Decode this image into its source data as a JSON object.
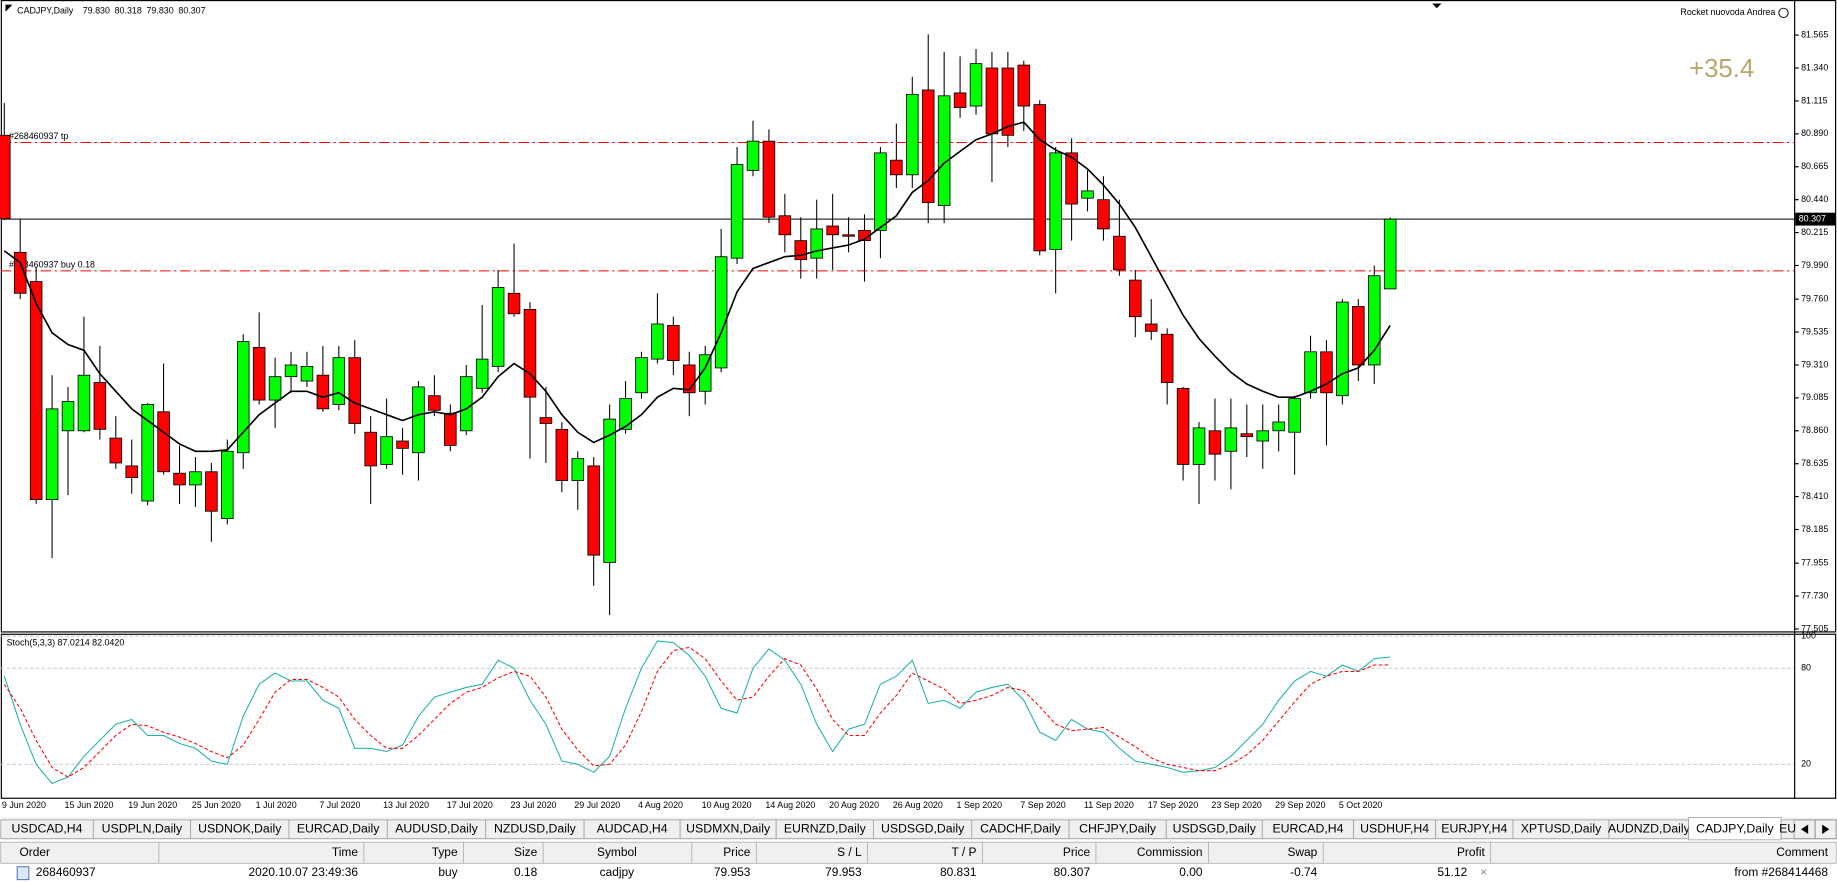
{
  "header": {
    "symbol": "CADJPY,Daily",
    "prices": [
      "79.830",
      "80.318",
      "79.830",
      "80.307"
    ],
    "account": "Rocket nuovoda Andrea",
    "profit_label": "+35.4"
  },
  "chart_data": [
    {
      "type": "candlestick",
      "categories": [
        "9 Jun 2020",
        null,
        null,
        null,
        "15 Jun 2020",
        null,
        null,
        null,
        "19 Jun 2020",
        null,
        null,
        null,
        "25 Jun 2020",
        null,
        null,
        null,
        "1 Jul 2020",
        null,
        null,
        null,
        "7 Jul 2020",
        null,
        null,
        null,
        "13 Jul 2020",
        null,
        null,
        null,
        "17 Jul 2020",
        null,
        null,
        null,
        "23 Jul 2020",
        null,
        null,
        null,
        "29 Jul 2020",
        null,
        null,
        null,
        "4 Aug 2020",
        null,
        null,
        null,
        "10 Aug 2020",
        null,
        null,
        null,
        "14 Aug 2020",
        null,
        null,
        null,
        "20 Aug 2020",
        null,
        null,
        null,
        "26 Aug 2020",
        null,
        null,
        null,
        "1 Sep 2020",
        null,
        null,
        null,
        "7 Sep 2020",
        null,
        null,
        null,
        "11 Sep 2020",
        null,
        null,
        null,
        "17 Sep 2020",
        null,
        null,
        null,
        "23 Sep 2020",
        null,
        null,
        null,
        "29 Sep 2020",
        null,
        null,
        null,
        "5 Oct 2020",
        null,
        null,
        null
      ],
      "open": [
        80.88,
        80.08,
        79.88,
        78.39,
        78.86,
        78.86,
        79.19,
        78.81,
        78.62,
        78.38,
        78.99,
        78.57,
        78.49,
        78.58,
        78.26,
        78.71,
        79.43,
        79.07,
        79.23,
        79.2,
        79.24,
        79.04,
        79.36,
        78.85,
        78.63,
        78.79,
        78.71,
        79.1,
        78.98,
        78.86,
        79.15,
        79.3,
        79.8,
        79.69,
        78.95,
        78.87,
        78.52,
        78.62,
        77.96,
        78.87,
        79.12,
        79.35,
        79.58,
        79.31,
        79.13,
        79.29,
        80.04,
        80.64,
        80.84,
        80.33,
        80.16,
        80.04,
        80.26,
        80.2,
        80.23,
        80.23,
        80.71,
        80.61,
        81.19,
        80.4,
        81.17,
        81.08,
        81.34,
        81.34,
        81.36,
        81.09,
        80.1,
        80.76,
        80.45,
        80.44,
        80.19,
        79.89,
        79.59,
        79.52,
        79.15,
        78.63,
        78.86,
        78.72,
        78.84,
        78.79,
        78.86,
        78.85,
        79.12,
        79.4,
        79.1,
        79.71,
        79.31,
        79.83
      ],
      "high": [
        81.1,
        80.31,
        79.98,
        79.24,
        79.16,
        79.64,
        79.44,
        78.96,
        78.8,
        79.05,
        79.32,
        78.76,
        78.68,
        78.64,
        78.8,
        79.52,
        79.67,
        79.36,
        79.4,
        79.4,
        79.44,
        79.44,
        79.48,
        78.96,
        79.08,
        78.88,
        79.2,
        79.24,
        79.04,
        79.31,
        79.72,
        79.96,
        80.14,
        79.74,
        79.16,
        78.92,
        78.72,
        78.68,
        79.04,
        79.2,
        79.4,
        79.8,
        79.64,
        79.4,
        79.44,
        80.24,
        80.8,
        80.98,
        80.92,
        80.48,
        80.32,
        80.44,
        80.48,
        80.32,
        80.34,
        80.8,
        80.96,
        81.28,
        81.57,
        81.45,
        81.42,
        81.47,
        81.45,
        81.45,
        81.39,
        81.12,
        80.8,
        80.86,
        80.64,
        80.6,
        80.44,
        79.96,
        79.76,
        79.56,
        79.16,
        78.92,
        79.08,
        79.08,
        79.04,
        79.04,
        79.04,
        79.1,
        79.51,
        79.48,
        79.76,
        79.76,
        79.99,
        80.318
      ],
      "low": [
        80.3,
        79.76,
        78.36,
        77.99,
        78.42,
        78.85,
        78.8,
        78.6,
        78.43,
        78.35,
        78.56,
        78.36,
        78.34,
        78.1,
        78.22,
        78.6,
        79.04,
        78.88,
        79.12,
        79.16,
        78.99,
        79.0,
        78.84,
        78.36,
        78.6,
        78.56,
        78.52,
        78.96,
        78.72,
        78.83,
        79.12,
        79.26,
        79.64,
        78.67,
        78.64,
        78.44,
        78.32,
        77.8,
        77.6,
        78.84,
        79.08,
        79.32,
        79.24,
        78.96,
        79.04,
        79.26,
        80.0,
        80.6,
        80.28,
        80.08,
        79.9,
        79.9,
        79.96,
        80.08,
        79.88,
        80.04,
        80.52,
        80.52,
        80.28,
        80.28,
        81.0,
        81.02,
        80.56,
        80.8,
        80.91,
        80.06,
        79.8,
        80.16,
        80.36,
        80.16,
        79.92,
        79.5,
        79.48,
        79.04,
        78.52,
        78.36,
        78.52,
        78.46,
        78.68,
        78.6,
        78.72,
        78.56,
        79.08,
        78.76,
        79.04,
        79.2,
        79.18,
        79.83
      ],
      "close": [
        80.31,
        79.8,
        78.39,
        79.01,
        79.06,
        79.24,
        78.87,
        78.64,
        78.54,
        79.04,
        78.58,
        78.49,
        78.58,
        78.31,
        78.72,
        79.47,
        79.07,
        79.23,
        79.31,
        79.3,
        79.01,
        79.36,
        78.91,
        78.62,
        78.82,
        78.74,
        79.16,
        79.0,
        78.76,
        79.23,
        79.35,
        79.84,
        79.66,
        79.09,
        78.91,
        78.52,
        78.67,
        78.01,
        78.94,
        79.08,
        79.36,
        79.59,
        79.34,
        79.12,
        79.38,
        80.05,
        80.68,
        80.84,
        80.32,
        80.2,
        80.03,
        80.24,
        80.2,
        80.19,
        80.16,
        80.76,
        80.61,
        81.16,
        80.42,
        81.15,
        81.07,
        81.37,
        80.89,
        80.88,
        81.08,
        80.09,
        80.76,
        80.41,
        80.5,
        80.24,
        79.96,
        79.64,
        79.54,
        79.19,
        78.63,
        78.88,
        78.7,
        78.88,
        78.82,
        78.86,
        78.92,
        79.08,
        79.4,
        79.12,
        79.74,
        79.31,
        79.92,
        80.307
      ],
      "up_color": "#00ff00",
      "down_color": "#ff0000",
      "ma": {
        "color": "#000000",
        "values": [
          80.09,
          80.01,
          79.73,
          79.53,
          79.45,
          79.41,
          79.25,
          79.13,
          79.01,
          78.93,
          78.85,
          78.77,
          78.72,
          78.72,
          78.73,
          78.85,
          78.97,
          79.05,
          79.13,
          79.13,
          79.09,
          79.12,
          79.05,
          79.01,
          78.97,
          78.93,
          78.97,
          78.99,
          78.97,
          79.01,
          79.09,
          79.23,
          79.32,
          79.25,
          79.13,
          78.97,
          78.85,
          78.78,
          78.83,
          78.89,
          78.97,
          79.09,
          79.15,
          79.14,
          79.29,
          79.53,
          79.81,
          79.97,
          80.01,
          80.05,
          80.06,
          80.09,
          80.11,
          80.13,
          80.17,
          80.25,
          80.33,
          80.49,
          80.57,
          80.69,
          80.77,
          80.85,
          80.89,
          80.94,
          80.97,
          80.85,
          80.78,
          80.73,
          80.65,
          80.54,
          80.41,
          80.25,
          80.05,
          79.85,
          79.65,
          79.49,
          79.37,
          79.26,
          79.18,
          79.13,
          79.09,
          79.09,
          79.13,
          79.18,
          79.25,
          79.29,
          79.41,
          79.58
        ]
      },
      "levels": [
        {
          "label": "#268460937 tp",
          "value": 80.831,
          "color": "#ff0000"
        },
        {
          "label": "#268460937 buy 0.18",
          "value": 79.953,
          "color": "#ff0000"
        }
      ],
      "current_price": 80.307,
      "ylim": [
        77.489,
        81.805
      ],
      "yticks": [
        81.565,
        {
          "value": 81.34,
          "label": "81.340"
        },
        81.115,
        {
          "value": 80.89,
          "label": "80.890"
        },
        80.665,
        {
          "value": 80.44,
          "label": "80.440"
        },
        80.215,
        {
          "value": 79.99,
          "label": "79.990"
        },
        {
          "value": 79.76,
          "label": "79.760"
        },
        79.535,
        {
          "value": 79.31,
          "label": "79.310"
        },
        79.085,
        {
          "value": 78.86,
          "label": "78.860"
        },
        78.635,
        {
          "value": 78.41,
          "label": "78.410"
        },
        78.185,
        77.955,
        {
          "value": 77.73,
          "label": "77.730"
        },
        77.505
      ]
    },
    {
      "type": "line",
      "title": "Stoch(5,3,3) 87.0214 82.0420",
      "series": [
        {
          "color": "#20b2aa",
          "dashed": false,
          "values": [
            75,
            45,
            20,
            8,
            12,
            25,
            35,
            45,
            48,
            38,
            38,
            33,
            30,
            22,
            20,
            50,
            70,
            77,
            72,
            72,
            60,
            55,
            30,
            30,
            28,
            32,
            50,
            62,
            65,
            68,
            70,
            85,
            80,
            60,
            45,
            22,
            20,
            15,
            25,
            55,
            80,
            97,
            96,
            88,
            75,
            55,
            52,
            80,
            92,
            85,
            70,
            45,
            28,
            42,
            45,
            70,
            75,
            85,
            58,
            60,
            55,
            65,
            68,
            70,
            60,
            40,
            35,
            48,
            42,
            40,
            30,
            22,
            20,
            18,
            15,
            16,
            18,
            25,
            35,
            45,
            60,
            72,
            78,
            75,
            82,
            78,
            86,
            87.0214
          ]
        },
        {
          "color": "#ff0000",
          "dashed": true,
          "values": [
            70,
            55,
            35,
            18,
            12,
            18,
            28,
            38,
            45,
            44,
            40,
            37,
            33,
            28,
            24,
            32,
            48,
            65,
            73,
            73,
            68,
            62,
            48,
            38,
            30,
            30,
            38,
            48,
            58,
            65,
            68,
            74,
            78,
            75,
            62,
            42,
            29,
            19,
            20,
            32,
            53,
            78,
            91,
            93,
            86,
            72,
            60,
            62,
            75,
            86,
            82,
            67,
            48,
            38,
            38,
            52,
            63,
            77,
            72,
            67,
            58,
            60,
            63,
            68,
            66,
            56,
            45,
            41,
            42,
            43,
            37,
            31,
            24,
            20,
            18,
            16,
            16,
            20,
            26,
            35,
            47,
            59,
            70,
            75,
            78,
            78,
            82,
            82.042
          ]
        }
      ],
      "ylim": [
        -1.2,
        101.2
      ],
      "yticks": [
        100,
        80,
        20
      ]
    }
  ],
  "tabs": [
    "USDCAD,H4",
    "USDPLN,Daily",
    "USDNOK,Daily",
    "EURCAD,Daily",
    "AUDUSD,Daily",
    "NZDUSD,Daily",
    "AUDCAD,H4",
    "USDMXN,Daily",
    "EURNZD,Daily",
    "USDSGD,Daily",
    "CADCHF,Daily",
    "CHFJPY,Daily",
    "USDSGD,Daily",
    "EURCAD,H4",
    "USDHUF,H4",
    "EURJPY,H4",
    "XPTUSD,Daily",
    "AUDNZD,Daily",
    "CADJPY,Daily",
    "EU"
  ],
  "active_tab": 18,
  "table": {
    "columns": [
      "Order",
      "Time",
      "Type",
      "Size",
      "Symbol",
      "Price",
      "S / L",
      "T / P",
      "Price",
      "Commission",
      "Swap",
      "Profit",
      "Comment"
    ],
    "rows": [
      [
        "268460937",
        "2020.10.07 23:49:36",
        "buy",
        "0.18",
        "cadjpy",
        "79.953",
        "79.953",
        "80.831",
        "80.307",
        "0.00",
        "-0.74",
        "51.12",
        "from #268414468"
      ]
    ]
  }
}
